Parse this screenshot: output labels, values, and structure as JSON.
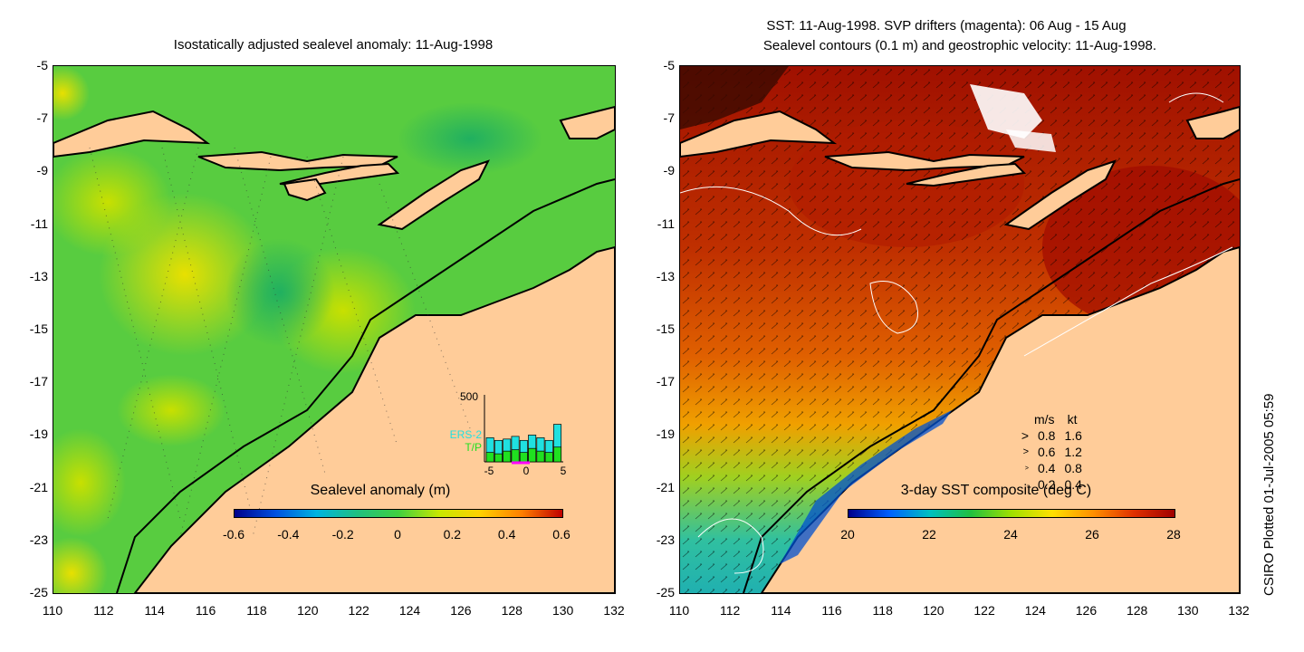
{
  "left_panel": {
    "title": "Isostatically adjusted sealevel anomaly: 11-Aug-1998",
    "colorbar": {
      "label": "Sealevel anomaly (m)",
      "ticks": [
        "-0.6",
        "-0.4",
        "-0.2",
        "0",
        "0.2",
        "0.4",
        "0.6"
      ],
      "colors": [
        "#00008b",
        "#0050e0",
        "#00b4e0",
        "#20c080",
        "#40d040",
        "#c8e800",
        "#ffd000",
        "#ff8000",
        "#c00000"
      ]
    },
    "inset_histogram": {
      "y_max_label": "500",
      "legend": [
        "ERS-2",
        "T/P"
      ],
      "legend_colors": [
        "#20e0e0",
        "#20e020"
      ],
      "x_ticks": [
        "-5",
        "0",
        "5"
      ],
      "ers2_values": [
        180,
        160,
        170,
        190,
        160,
        200,
        180,
        160,
        280
      ],
      "tp_values": [
        70,
        60,
        80,
        90,
        70,
        100,
        80,
        70,
        110
      ],
      "y_range": [
        0,
        500
      ]
    }
  },
  "right_panel": {
    "title_line1": "SST: 11-Aug-1998. SVP drifters (magenta): 06 Aug - 15 Aug",
    "title_line2": "Sealevel contours (0.1 m) and geostrophic velocity: 11-Aug-1998.",
    "colorbar": {
      "label": "3-day SST composite (deg C)",
      "ticks": [
        "20",
        "22",
        "24",
        "26",
        "28"
      ],
      "colors": [
        "#00008b",
        "#0060ff",
        "#00c0c0",
        "#20c040",
        "#a0e000",
        "#ffe000",
        "#ff9000",
        "#e03000",
        "#a00000"
      ]
    },
    "velocity_legend": {
      "header_ms": "m/s",
      "header_kt": "kt",
      "rows": [
        {
          "ms": "0.8",
          "kt": "1.6"
        },
        {
          "ms": "0.6",
          "kt": "1.2"
        },
        {
          "ms": "0.4",
          "kt": "0.8"
        },
        {
          "ms": "0.2",
          "kt": "0.4"
        }
      ]
    }
  },
  "axes": {
    "x_ticks": [
      "110",
      "112",
      "114",
      "116",
      "118",
      "120",
      "122",
      "124",
      "126",
      "128",
      "130",
      "132"
    ],
    "y_ticks": [
      "-5",
      "-7",
      "-9",
      "-11",
      "-13",
      "-15",
      "-17",
      "-19",
      "-21",
      "-23",
      "-25"
    ]
  },
  "land_color": "#ffcc99",
  "credit": "CSIRO Plotted 01-Jul-2005 05:59"
}
